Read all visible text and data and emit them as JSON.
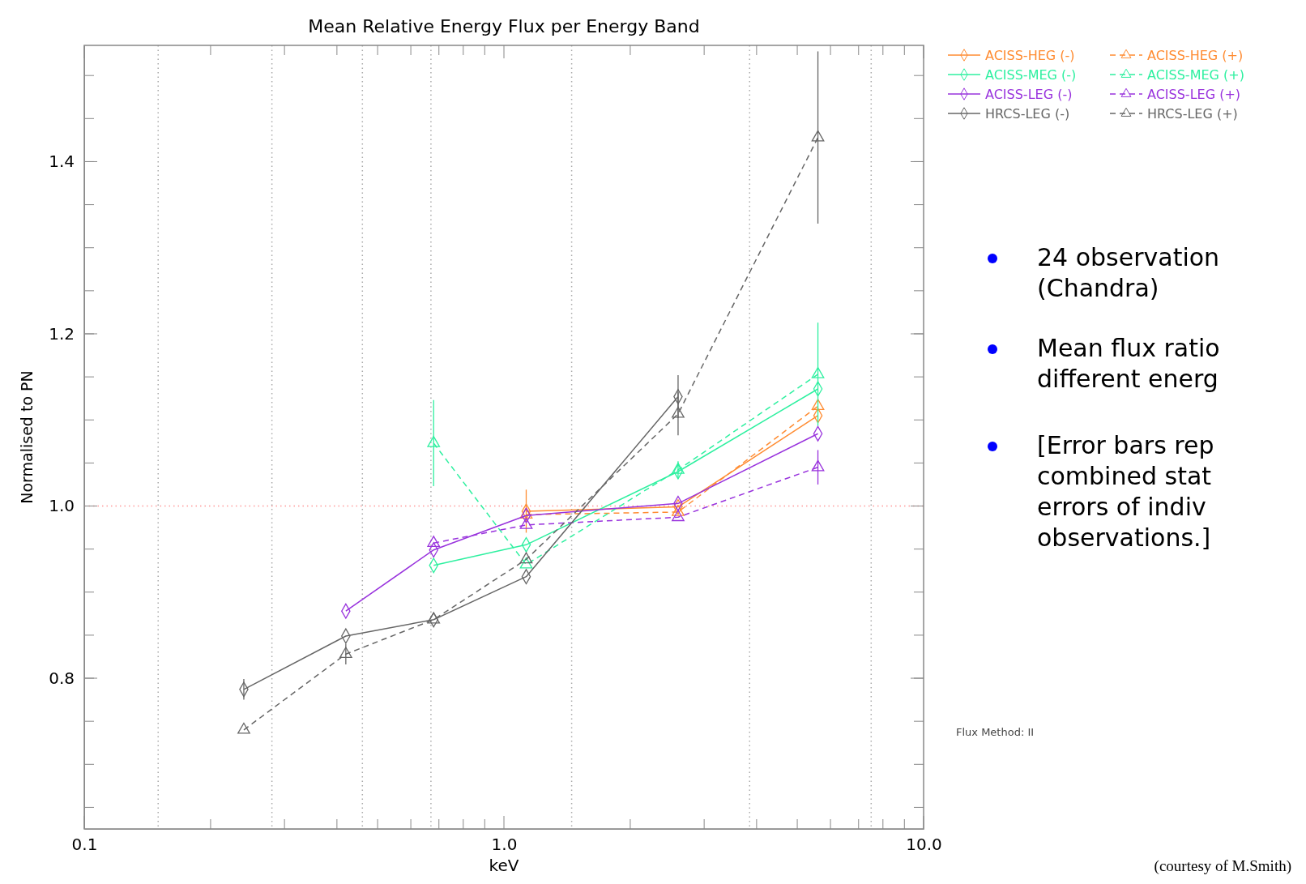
{
  "chart_data": {
    "type": "line",
    "title": "Mean Relative Energy Flux per Energy Band",
    "xlabel": "keV",
    "ylabel": "Normalised to PN",
    "log": "x",
    "xlim": [
      0.1,
      10
    ],
    "xticks": [
      {
        "value": 0.1,
        "label": "0.1"
      },
      {
        "value": 1,
        "label": "1.0"
      },
      {
        "value": 10,
        "label": "10.0"
      }
    ],
    "ylim": [
      0.625,
      1.535
    ],
    "yticks": [
      0.8,
      {
        "value": 1,
        "label": "1.0"
      },
      1.2,
      1.4
    ],
    "grid": false,
    "legend": "top right",
    "x": [
      0.24,
      0.42,
      0.68,
      1.13,
      2.6,
      5.6
    ],
    "series": [
      {
        "name": "ACISS-HEG (-)",
        "color": "#ff8c32",
        "marker": "diamond",
        "line_style": "solid",
        "values": [
          null,
          null,
          null,
          0.994,
          0.999,
          1.105
        ],
        "errors": [
          null,
          null,
          null,
          0.025,
          null,
          null
        ]
      },
      {
        "name": "ACISS-HEG (+)",
        "color": "#ff8c32",
        "marker": "triangle",
        "line_style": "dashed",
        "values": [
          null,
          null,
          null,
          0.99,
          0.993,
          1.116
        ]
      },
      {
        "name": "ACISS-MEG (-)",
        "color": "#2ef0a0",
        "marker": "diamond",
        "line_style": "solid",
        "values": [
          null,
          null,
          0.931,
          0.955,
          1.04,
          1.136
        ]
      },
      {
        "name": "ACISS-MEG (+)",
        "color": "#2ef0a0",
        "marker": "triangle",
        "line_style": "dashed",
        "values": [
          null,
          null,
          1.073,
          0.932,
          1.042,
          1.153
        ],
        "errors": [
          null,
          null,
          0.05,
          null,
          0.01,
          0.06
        ]
      },
      {
        "name": "ACISS-LEG (-)",
        "color": "#9933dd",
        "marker": "diamond",
        "line_style": "solid",
        "values": [
          null,
          0.878,
          0.949,
          0.989,
          1.003,
          1.084
        ]
      },
      {
        "name": "ACISS-LEG (+)",
        "color": "#9933dd",
        "marker": "triangle",
        "line_style": "dashed",
        "values": [
          null,
          null,
          0.957,
          0.978,
          0.987,
          1.045
        ],
        "errors": [
          null,
          null,
          null,
          null,
          null,
          0.02
        ]
      },
      {
        "name": "HRCS-LEG (-)",
        "color": "#666666",
        "marker": "diamond",
        "line_style": "solid",
        "values": [
          0.787,
          0.849,
          0.868,
          0.918,
          1.127,
          null
        ],
        "errors": [
          0.012,
          null,
          null,
          null,
          0.025,
          null
        ]
      },
      {
        "name": "HRCS-LEG (+)",
        "color": "#666666",
        "marker": "triangle",
        "line_style": "dashed",
        "values": [
          0.74,
          0.828,
          0.868,
          0.938,
          1.107,
          1.428
        ],
        "errors": [
          null,
          0.012,
          null,
          null,
          0.025,
          0.1
        ]
      }
    ],
    "ref_lines": [
      {
        "axis": "y",
        "value": 1.0,
        "color": "#ff9999",
        "line_style": "dotted"
      },
      {
        "axis": "x",
        "value": 0.15,
        "color": "#aaaaaa",
        "line_style": "dotted"
      },
      {
        "axis": "x",
        "value": 0.28,
        "color": "#aaaaaa",
        "line_style": "dotted"
      },
      {
        "axis": "x",
        "value": 0.46,
        "color": "#aaaaaa",
        "line_style": "dotted"
      },
      {
        "axis": "x",
        "value": 0.67,
        "color": "#aaaaaa",
        "line_style": "dotted"
      },
      {
        "axis": "x",
        "value": 1.45,
        "color": "#aaaaaa",
        "line_style": "dotted"
      },
      {
        "axis": "x",
        "value": 3.85,
        "color": "#aaaaaa",
        "line_style": "dotted"
      },
      {
        "axis": "x",
        "value": 7.5,
        "color": "#aaaaaa",
        "line_style": "dotted"
      }
    ],
    "annotations": [
      "24 observation\n(Chandra)",
      "Mean flux ratio\ndifferent energ",
      "[Error bars rep\ncombined stat\nerrors of  indiv\nobservations.]",
      "Flux Method: II",
      "(courtesy of M.Smith)"
    ]
  }
}
